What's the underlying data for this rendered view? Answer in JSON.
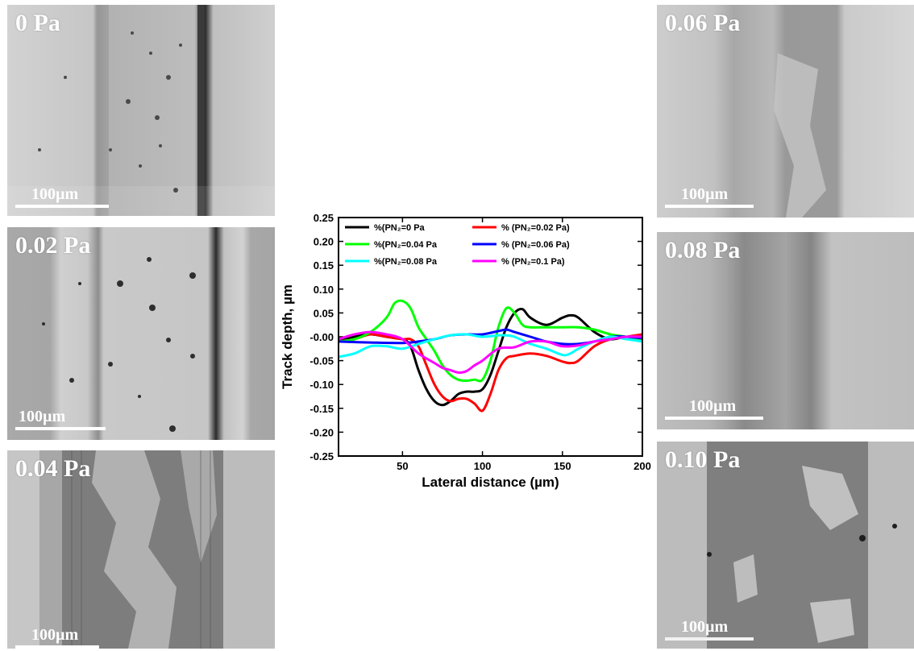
{
  "panels": [
    {
      "id": "p0",
      "label": "0 Pa",
      "scale": "100µm"
    },
    {
      "id": "p002",
      "label": "0.02 Pa",
      "scale": "100µm"
    },
    {
      "id": "p004",
      "label": "0.04 Pa",
      "scale": "100µm"
    },
    {
      "id": "p006",
      "label": "0.06 Pa",
      "scale": "100µm"
    },
    {
      "id": "p008",
      "label": "0.08 Pa",
      "scale": "100µm"
    },
    {
      "id": "p010",
      "label": "0.10 Pa",
      "scale": "100µm"
    }
  ],
  "chart_data": {
    "type": "line",
    "xlabel": "Lateral distance (µm)",
    "ylabel": "Track depth, µm",
    "xlim": [
      10,
      200
    ],
    "ylim": [
      -0.25,
      0.25
    ],
    "xticks": [
      50,
      100,
      150,
      200
    ],
    "yticks": [
      0.25,
      0.2,
      0.15,
      0.1,
      0.05,
      0.0,
      -0.05,
      -0.1,
      -0.15,
      -0.2,
      -0.25
    ],
    "ytick_labels": [
      "0.25",
      "0.20",
      "0.15",
      "0.10",
      "0.05",
      "-0.00",
      "-0.05",
      "-0.10",
      "-0.15",
      "-0.20",
      "-0.25"
    ],
    "legend_position": "top",
    "grid": false,
    "series": [
      {
        "name": "%(PN₂=0 Pa",
        "color": "#000000",
        "x": [
          10,
          20,
          30,
          40,
          50,
          55,
          60,
          65,
          70,
          75,
          80,
          85,
          90,
          95,
          100,
          105,
          110,
          115,
          120,
          125,
          130,
          140,
          150,
          155,
          160,
          170,
          180,
          190,
          200
        ],
        "y": [
          -0.01,
          0.0,
          0.005,
          0.0,
          -0.005,
          -0.02,
          -0.07,
          -0.11,
          -0.135,
          -0.143,
          -0.135,
          -0.12,
          -0.115,
          -0.115,
          -0.11,
          -0.08,
          -0.03,
          0.02,
          0.05,
          0.058,
          0.04,
          0.025,
          0.04,
          0.045,
          0.04,
          0.01,
          -0.005,
          0.0,
          -0.005
        ]
      },
      {
        "name": "% (PN₂=0.02 Pa)",
        "color": "#ff0000",
        "x": [
          10,
          20,
          30,
          40,
          50,
          55,
          60,
          65,
          70,
          75,
          80,
          85,
          90,
          95,
          100,
          105,
          110,
          115,
          120,
          130,
          140,
          150,
          155,
          160,
          170,
          180,
          190,
          200
        ],
        "y": [
          -0.01,
          -0.005,
          0.005,
          0.0,
          -0.005,
          -0.005,
          -0.02,
          -0.06,
          -0.1,
          -0.125,
          -0.135,
          -0.13,
          -0.13,
          -0.14,
          -0.155,
          -0.12,
          -0.07,
          -0.045,
          -0.04,
          -0.035,
          -0.04,
          -0.052,
          -0.055,
          -0.05,
          -0.02,
          -0.005,
          0.0,
          0.005
        ]
      },
      {
        "name": "%(PN₂=0.04 Pa",
        "color": "#00ff00",
        "x": [
          10,
          20,
          30,
          40,
          45,
          50,
          55,
          60,
          65,
          70,
          75,
          80,
          85,
          90,
          95,
          100,
          105,
          110,
          115,
          120,
          125,
          130,
          140,
          150,
          160,
          170,
          180,
          190,
          200
        ],
        "y": [
          -0.01,
          -0.005,
          0.01,
          0.04,
          0.07,
          0.075,
          0.06,
          0.02,
          -0.005,
          -0.03,
          -0.06,
          -0.08,
          -0.09,
          -0.092,
          -0.09,
          -0.09,
          -0.05,
          0.02,
          0.06,
          0.05,
          0.025,
          0.02,
          0.02,
          0.02,
          0.02,
          0.015,
          0.005,
          0.0,
          -0.005
        ]
      },
      {
        "name": "% (PN₂=0.06 Pa)",
        "color": "#0000ff",
        "x": [
          10,
          30,
          50,
          60,
          70,
          80,
          90,
          100,
          110,
          115,
          120,
          130,
          140,
          150,
          160,
          170,
          180,
          190,
          200
        ],
        "y": [
          -0.01,
          -0.012,
          -0.013,
          -0.01,
          -0.005,
          0.003,
          0.005,
          0.005,
          0.012,
          0.015,
          0.01,
          0.0,
          -0.01,
          -0.015,
          -0.015,
          -0.01,
          0.0,
          0.0,
          -0.003
        ]
      },
      {
        "name": "%(PN₂=0.08 Pa",
        "color": "#00ffff",
        "x": [
          10,
          20,
          30,
          40,
          50,
          60,
          70,
          80,
          90,
          100,
          110,
          115,
          120,
          130,
          140,
          150,
          155,
          160,
          170,
          180,
          190,
          200
        ],
        "y": [
          -0.042,
          -0.035,
          -0.02,
          -0.02,
          -0.025,
          -0.015,
          -0.005,
          0.003,
          0.005,
          0.0,
          0.003,
          0.003,
          0.0,
          -0.015,
          -0.025,
          -0.038,
          -0.035,
          -0.025,
          -0.01,
          0.0,
          -0.005,
          -0.01
        ]
      },
      {
        "name": "% (PN₂=0.1 Pa)",
        "color": "#ff00ff",
        "x": [
          10,
          20,
          30,
          40,
          50,
          60,
          70,
          75,
          80,
          85,
          90,
          95,
          100,
          110,
          120,
          130,
          140,
          150,
          160,
          170,
          180,
          190,
          200
        ],
        "y": [
          -0.005,
          0.005,
          0.01,
          0.005,
          -0.005,
          -0.035,
          -0.055,
          -0.065,
          -0.07,
          -0.075,
          -0.072,
          -0.06,
          -0.05,
          -0.025,
          -0.022,
          -0.01,
          -0.01,
          -0.02,
          -0.018,
          -0.01,
          -0.005,
          0.0,
          0.0
        ]
      }
    ]
  }
}
